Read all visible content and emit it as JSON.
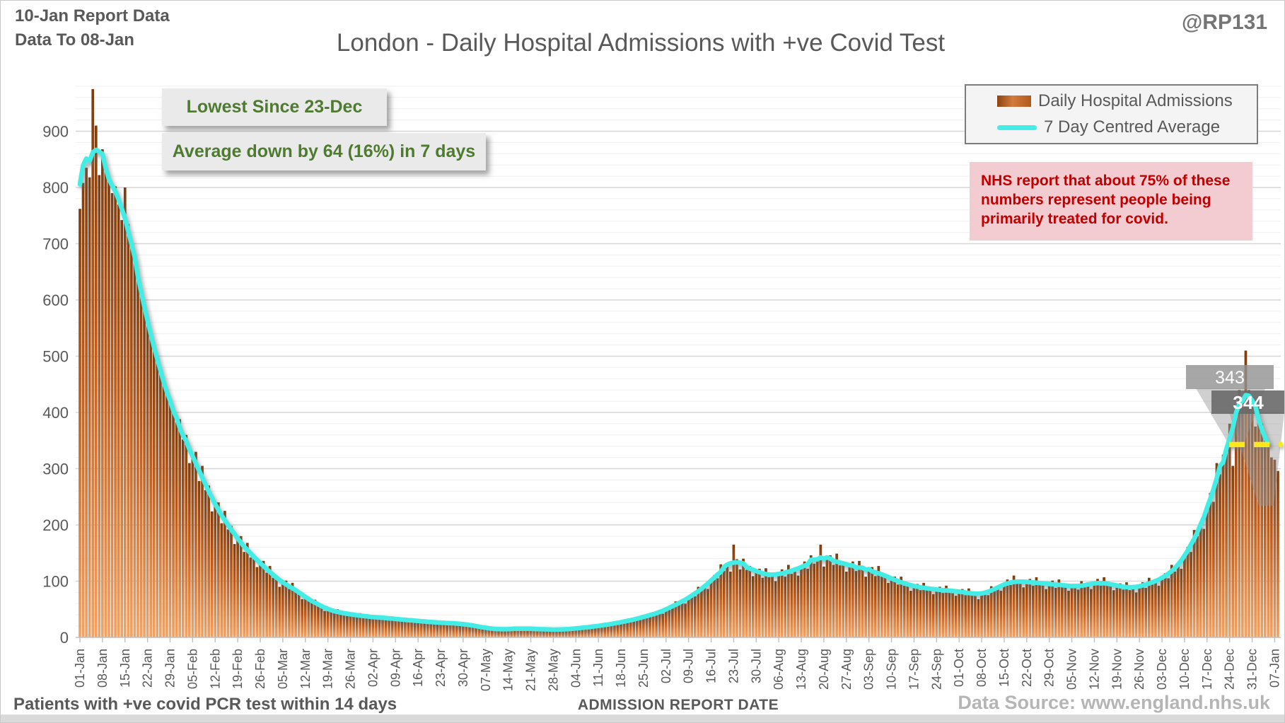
{
  "header": {
    "report_line1": "10-Jan Report Data",
    "report_line2": "Data To 08-Jan",
    "handle": "@RP131",
    "title": "London - Daily Hospital Admissions with +ve Covid Test"
  },
  "info_boxes": {
    "lowest_label": "Lowest Since 23-Dec",
    "avg_change_label": "Average down by 64 (16%) in 7 days"
  },
  "nhs_note": "NHS report that about 75% of these numbers represent people being primarily treated for covid.",
  "legend": {
    "bars_label": "Daily Hospital Admissions",
    "line_label": "7 Day Centred Average"
  },
  "footer": {
    "left_note": "Patients with +ve covid PCR test within 14 days",
    "axis_title": "ADMISSION REPORT DATE",
    "source": "Data Source: www.england.nhs.uk"
  },
  "colors": {
    "bar_top": "#7e3d0e",
    "bar_mid": "#b85c1f",
    "bar_bottom": "#efa468",
    "line": "#43ece4",
    "lowest_line": "#ffe81a",
    "green_text": "#4e7b2f",
    "red_text": "#c00000",
    "red_bg": "#f2ccd1",
    "axis_text": "#595959",
    "grid_major": "#d6d6d6",
    "grid_minor": "#efefef",
    "callout_light": "rgba(145,145,145,0.8)",
    "callout_dark": "rgba(105,105,105,0.9)"
  },
  "chart_data": {
    "type": "bar",
    "title": "London - Daily Hospital Admissions with +ve Covid Test",
    "xlabel": "ADMISSION REPORT DATE",
    "ylabel": "",
    "ylim": [
      0,
      990
    ],
    "grid": true,
    "legend_position": "top-right",
    "y_major_ticks": [
      0,
      100,
      200,
      300,
      400,
      500,
      600,
      700,
      800,
      900
    ],
    "y_minor_step": 20,
    "x_tick_day_step": 7,
    "x_tick_labels": [
      "01-Jan",
      "08-Jan",
      "15-Jan",
      "22-Jan",
      "29-Jan",
      "05-Feb",
      "12-Feb",
      "19-Feb",
      "26-Feb",
      "05-Mar",
      "12-Mar",
      "19-Mar",
      "26-Mar",
      "02-Apr",
      "09-Apr",
      "16-Apr",
      "23-Apr",
      "30-Apr",
      "07-May",
      "14-May",
      "21-May",
      "28-May",
      "04-Jun",
      "11-Jun",
      "18-Jun",
      "25-Jun",
      "02-Jul",
      "09-Jul",
      "16-Jul",
      "23-Jul",
      "30-Jul",
      "06-Aug",
      "13-Aug",
      "20-Aug",
      "27-Aug",
      "03-Sep",
      "10-Sep",
      "17-Sep",
      "24-Sep",
      "01-Oct",
      "08-Oct",
      "15-Oct",
      "22-Oct",
      "29-Oct",
      "05-Nov",
      "12-Nov",
      "19-Nov",
      "26-Nov",
      "03-Dec",
      "10-Dec",
      "17-Dec",
      "24-Dec",
      "31-Dec",
      "07-Jan"
    ],
    "series": [
      {
        "name": "Daily Hospital Admissions",
        "type": "bar",
        "values": [
          762,
          808,
          835,
          818,
          975,
          910,
          822,
          868,
          840,
          812,
          790,
          802,
          770,
          742,
          800,
          735,
          698,
          668,
          645,
          610,
          582,
          558,
          545,
          510,
          495,
          476,
          450,
          435,
          415,
          400,
          383,
          388,
          352,
          360,
          310,
          322,
          330,
          278,
          305,
          262,
          270,
          224,
          235,
          240,
          203,
          225,
          192,
          198,
          166,
          175,
          180,
          152,
          168,
          142,
          147,
          125,
          132,
          136,
          115,
          127,
          106,
          108,
          90,
          97,
          101,
          86,
          97,
          81,
          82,
          68,
          72,
          72,
          61,
          67,
          56,
          57,
          47,
          50,
          51,
          43,
          50,
          42,
          44,
          38,
          41,
          42,
          38,
          43,
          36,
          38,
          33,
          36,
          38,
          33,
          39,
          33,
          35,
          30,
          33,
          34,
          30,
          34,
          30,
          31,
          27,
          29,
          31,
          26,
          31,
          26,
          28,
          23,
          26,
          28,
          24,
          28,
          24,
          25,
          22,
          25,
          24,
          21,
          23,
          19,
          20,
          16,
          17,
          17,
          14,
          17,
          13,
          14,
          13,
          15,
          16,
          14,
          18,
          15,
          16,
          14,
          15,
          16,
          14,
          17,
          13,
          14,
          13,
          14,
          15,
          13,
          15,
          14,
          15,
          14,
          16,
          17,
          16,
          20,
          17,
          20,
          18,
          20,
          22,
          21,
          25,
          23,
          26,
          23,
          27,
          30,
          27,
          33,
          31,
          34,
          32,
          36,
          40,
          37,
          45,
          41,
          46,
          42,
          50,
          55,
          52,
          64,
          59,
          66,
          60,
          70,
          78,
          73,
          90,
          83,
          94,
          86,
          101,
          111,
          105,
          130,
          118,
          132,
          117,
          165,
          139,
          121,
          140,
          120,
          127,
          109,
          118,
          122,
          106,
          123,
          107,
          113,
          100,
          112,
          121,
          108,
          129,
          113,
          124,
          110,
          125,
          135,
          122,
          146,
          131,
          142,
          165,
          126,
          139,
          146,
          129,
          149,
          128,
          135,
          117,
          128,
          135,
          118,
          136,
          126,
          108,
          119,
          125,
          109,
          127,
          108,
          113,
          97,
          105,
          108,
          94,
          108,
          92,
          97,
          83,
          91,
          95,
          84,
          97,
          84,
          89,
          77,
          85,
          90,
          79,
          92,
          80,
          85,
          74,
          82,
          86,
          75,
          87,
          75,
          79,
          68,
          77,
          83,
          75,
          91,
          83,
          92,
          83,
          95,
          103,
          93,
          110,
          96,
          103,
          89,
          99,
          104,
          92,
          107,
          93,
          99,
          86,
          95,
          101,
          88,
          103,
          89,
          96,
          83,
          91,
          95,
          85,
          100,
          89,
          98,
          86,
          97,
          104,
          92,
          107,
          92,
          98,
          84,
          92,
          96,
          85,
          98,
          84,
          91,
          80,
          90,
          98,
          88,
          106,
          94,
          103,
          92,
          105,
          114,
          105,
          129,
          117,
          132,
          122,
          143,
          161,
          152,
          191,
          180,
          206,
          193,
          228,
          257,
          241,
          310,
          290,
          325,
          330,
          380,
          305,
          405,
          440,
          425,
          510,
          440,
          420,
          375,
          398,
          380,
          355,
          345,
          320,
          316,
          296
        ]
      },
      {
        "name": "7 Day Centred Average",
        "type": "line",
        "derivation": "7-day centred mean of daily values",
        "end_value": 344
      }
    ],
    "lowest_since_line": {
      "value": 343,
      "from_day_index": 356
    },
    "callouts": [
      {
        "label": "343",
        "style": "light"
      },
      {
        "label": "344",
        "style": "dark"
      }
    ]
  }
}
